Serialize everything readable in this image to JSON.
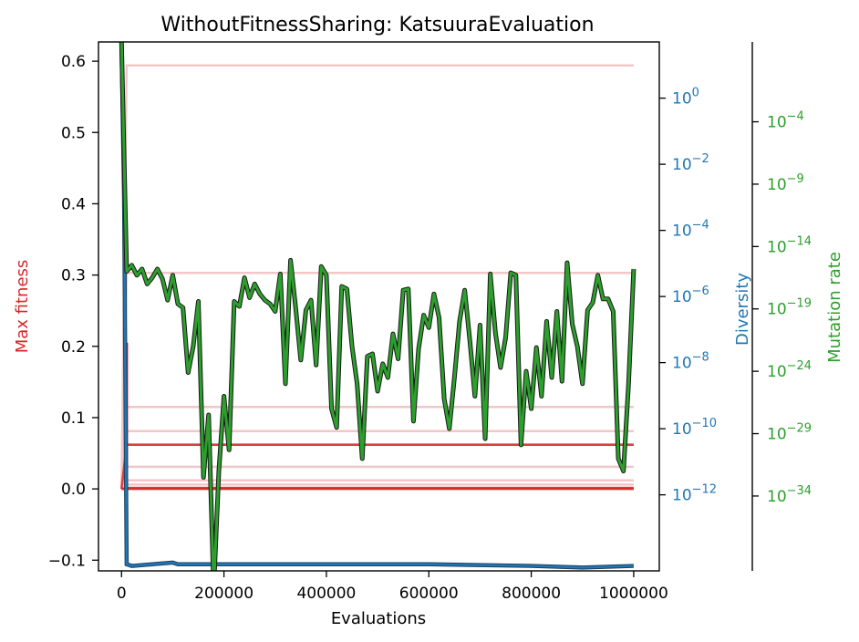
{
  "chart_data": {
    "type": "line",
    "title": "WithoutFitnessSharing: KatsuuraEvaluation",
    "xlabel": "Evaluations",
    "ylabel_left": "Max fitness",
    "ylabel_right1": "Diversity",
    "ylabel_right2": "Mutation rate",
    "xlim": [
      -45000,
      1050000
    ],
    "ylim_fitness": [
      -0.115,
      0.627
    ],
    "diversity_log10_range": [
      -14.3,
      1.7
    ],
    "mutation_log10_range": [
      -40.0,
      2.4
    ],
    "x_ticks": [
      0,
      200000,
      400000,
      600000,
      800000,
      1000000
    ],
    "x_tick_labels": [
      "0",
      "200000",
      "400000",
      "600000",
      "800000",
      "1000000"
    ],
    "fitness_ticks": [
      -0.1,
      0.0,
      0.1,
      0.2,
      0.3,
      0.4,
      0.5,
      0.6
    ],
    "fitness_tick_labels": [
      "−0.1",
      "0.0",
      "0.1",
      "0.2",
      "0.3",
      "0.4",
      "0.5",
      "0.6"
    ],
    "diversity_ticks": [
      {
        "base": "10",
        "exp": "0",
        "log": 0
      },
      {
        "base": "10",
        "exp": "−2",
        "log": -2
      },
      {
        "base": "10",
        "exp": "−4",
        "log": -4
      },
      {
        "base": "10",
        "exp": "−6",
        "log": -6
      },
      {
        "base": "10",
        "exp": "−8",
        "log": -8
      },
      {
        "base": "10",
        "exp": "−10",
        "log": -10
      },
      {
        "base": "10",
        "exp": "−12",
        "log": -12
      }
    ],
    "mutation_ticks": [
      {
        "base": "10",
        "exp": "−4",
        "log": -4
      },
      {
        "base": "10",
        "exp": "−9",
        "log": -9
      },
      {
        "base": "10",
        "exp": "−14",
        "log": -14
      },
      {
        "base": "10",
        "exp": "−19",
        "log": -19
      },
      {
        "base": "10",
        "exp": "−24",
        "log": -24
      },
      {
        "base": "10",
        "exp": "−29",
        "log": -29
      },
      {
        "base": "10",
        "exp": "−34",
        "log": -34
      }
    ],
    "colors": {
      "fitness": "#d62728",
      "fitness_faint": "#f2c7c7",
      "diversity": "#1f77b4",
      "mutation": "#2ca02c",
      "mutation_edge": "#1a1a1a",
      "axis": "#000000",
      "errorbar": "#ff0000"
    },
    "fitness_runs_faint": [
      0.594,
      0.303,
      0.115,
      0.081,
      0.062,
      0.031,
      0.012,
      0.006,
      0.002
    ],
    "fitness_runs_strong": [
      0.062,
      0.001,
      0.0
    ],
    "fitness_errorbar": {
      "x": 10000,
      "low": -0.085,
      "high": 0.205
    },
    "diversity_series": {
      "x": [
        0,
        5000,
        10000,
        20000,
        60000,
        100000,
        110000,
        200000,
        400000,
        600000,
        800000,
        900000,
        1000000
      ],
      "log10": [
        1.6,
        -3.0,
        -14.1,
        -14.15,
        -14.1,
        -14.05,
        -14.1,
        -14.1,
        -14.1,
        -14.1,
        -14.15,
        -14.2,
        -14.15
      ]
    },
    "mutation_series": {
      "x": [
        0,
        10000,
        20000,
        30000,
        40000,
        50000,
        60000,
        70000,
        80000,
        90000,
        100000,
        110000,
        120000,
        130000,
        140000,
        150000,
        160000,
        170000,
        180000,
        190000,
        200000,
        210000,
        220000,
        230000,
        240000,
        250000,
        260000,
        270000,
        280000,
        290000,
        300000,
        310000,
        320000,
        330000,
        340000,
        350000,
        360000,
        370000,
        380000,
        390000,
        400000,
        410000,
        420000,
        430000,
        440000,
        450000,
        460000,
        470000,
        480000,
        490000,
        500000,
        510000,
        520000,
        530000,
        540000,
        550000,
        560000,
        570000,
        580000,
        590000,
        600000,
        610000,
        620000,
        630000,
        640000,
        650000,
        660000,
        670000,
        680000,
        690000,
        700000,
        710000,
        720000,
        730000,
        740000,
        750000,
        760000,
        770000,
        780000,
        790000,
        800000,
        810000,
        820000,
        830000,
        840000,
        850000,
        860000,
        870000,
        880000,
        890000,
        900000,
        910000,
        920000,
        930000,
        940000,
        950000,
        960000,
        970000,
        980000,
        990000,
        1000000
      ],
      "log10": [
        2.4,
        -16.0,
        -15.5,
        -16.3,
        -15.8,
        -17.0,
        -16.5,
        -15.8,
        -16.6,
        -18.3,
        -16.3,
        -18.6,
        -18.9,
        -24.1,
        -22.0,
        -18.4,
        -32.5,
        -27.5,
        -41.5,
        -32.0,
        -26.0,
        -30.3,
        -18.4,
        -18.8,
        -16.5,
        -18.1,
        -17.0,
        -17.8,
        -18.3,
        -18.6,
        -19.2,
        -16.2,
        -25.0,
        -15.1,
        -18.9,
        -23.1,
        -19.1,
        -18.3,
        -23.5,
        -15.6,
        -16.3,
        -27.0,
        -28.5,
        -17.2,
        -17.4,
        -22.0,
        -25.0,
        -31.0,
        -22.8,
        -22.6,
        -25.6,
        -23.4,
        -24.5,
        -21.0,
        -23.0,
        -17.5,
        -17.4,
        -28.0,
        -22.2,
        -19.5,
        -20.5,
        -17.8,
        -19.7,
        -26.2,
        -28.6,
        -24.5,
        -20.0,
        -17.5,
        -21.5,
        -26.0,
        -20.3,
        -29.4,
        -16.2,
        -20.9,
        -23.7,
        -21.3,
        -16.1,
        -16.3,
        -29.9,
        -24.0,
        -27.0,
        -22.1,
        -26.0,
        -20.0,
        -24.5,
        -19.2,
        -24.8,
        -15.3,
        -20.2,
        -22.0,
        -25.0,
        -19.1,
        -18.5,
        -16.3,
        -18.2,
        -18.2,
        -19.2,
        -31.0,
        -32.0,
        -25.0,
        -15.8
      ]
    }
  }
}
